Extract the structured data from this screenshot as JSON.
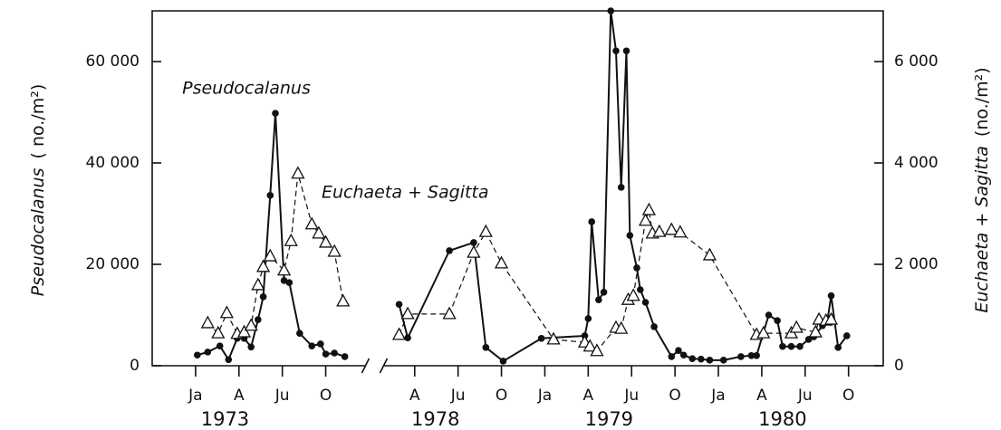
{
  "chart_data": {
    "type": "line",
    "ylabel": "Pseudocalanus",
    "yunit": "( no./m²)",
    "y2label": "Euchaeta + Sagitta",
    "y2unit": "(no./m²)",
    "xlim": [
      1972.75,
      1980.95
    ],
    "xbreak": [
      1974.0,
      1978.05
    ],
    "xticks": [
      {
        "value": 1973.0,
        "label": "Ja"
      },
      {
        "value": 1973.25,
        "label": "A"
      },
      {
        "value": 1973.5,
        "label": "Ju"
      },
      {
        "value": 1973.75,
        "label": "O"
      },
      {
        "value": 1978.25,
        "label": "A"
      },
      {
        "value": 1978.5,
        "label": "Ju"
      },
      {
        "value": 1978.75,
        "label": "O"
      },
      {
        "value": 1979.0,
        "label": "Ja"
      },
      {
        "value": 1979.25,
        "label": "A"
      },
      {
        "value": 1979.5,
        "label": "Ju"
      },
      {
        "value": 1979.75,
        "label": "O"
      },
      {
        "value": 1980.0,
        "label": "Ja"
      },
      {
        "value": 1980.25,
        "label": "A"
      },
      {
        "value": 1980.5,
        "label": "Ju"
      },
      {
        "value": 1980.75,
        "label": "O"
      }
    ],
    "years": [
      {
        "value": 1973.17,
        "label": "1973"
      },
      {
        "value": 1978.37,
        "label": "1978"
      },
      {
        "value": 1979.37,
        "label": "1979"
      },
      {
        "value": 1980.37,
        "label": "1980"
      }
    ],
    "ylim": [
      0,
      70000
    ],
    "yticks": [
      0,
      {
        "value": 20000,
        "label": "20 000"
      },
      {
        "value": 40000,
        "label": "40 000"
      },
      {
        "value": 60000,
        "label": "60 000"
      }
    ],
    "y2lim": [
      0,
      7000
    ],
    "y2ticks": [
      0,
      {
        "value": 2000,
        "label": "2 000"
      },
      {
        "value": 4000,
        "label": "4 000"
      },
      {
        "value": 6000,
        "label": "6 000"
      }
    ],
    "series": [
      {
        "name": "Pseudocalanus",
        "color": "#111111",
        "marker": "circle",
        "dashed": false,
        "axis": "y",
        "x": [
          1973.01,
          1973.07,
          1973.14,
          1973.19,
          1973.24,
          1973.28,
          1973.32,
          1973.36,
          1973.39,
          1973.43,
          1973.46,
          1973.51,
          1973.54,
          1973.6,
          1973.67,
          1973.72,
          1973.75,
          1973.8,
          1973.86,
          null,
          1978.16,
          1978.21,
          1978.45,
          1978.59,
          1978.66,
          1978.76,
          1978.98,
          1979.23,
          1979.25,
          1979.27,
          1979.31,
          1979.34,
          1979.38,
          1979.41,
          1979.44,
          1979.47,
          1979.49,
          1979.53,
          1979.55,
          1979.58,
          1979.63,
          1979.73,
          1979.77,
          1979.8,
          1979.85,
          1979.9,
          1979.95,
          1980.03,
          1980.13,
          1980.19,
          1980.22,
          1980.29,
          1980.34,
          1980.37,
          1980.42,
          1980.47,
          1980.52,
          1980.55,
          1980.6,
          1980.63,
          1980.65,
          1980.69,
          1980.74
        ],
        "values": [
          2100,
          2700,
          3900,
          1200,
          5400,
          5400,
          3700,
          9100,
          13600,
          33600,
          49800,
          16800,
          16400,
          6400,
          3900,
          4300,
          2300,
          2500,
          1800,
          null,
          12100,
          5500,
          22700,
          24300,
          3600,
          900,
          5400,
          5900,
          9300,
          28400,
          13000,
          14500,
          70000,
          62100,
          35200,
          62100,
          25700,
          19300,
          15000,
          12500,
          7700,
          1800,
          3000,
          2100,
          1400,
          1300,
          1100,
          1100,
          1800,
          2000,
          2000,
          10000,
          8900,
          3800,
          3800,
          3800,
          5200,
          5700,
          7900,
          9300,
          13800,
          3600,
          5900
        ]
      },
      {
        "name": "Euchaeta + Sagitta",
        "color": "#111111",
        "marker": "triangle",
        "dashed": true,
        "axis": "y2",
        "x": [
          1973.07,
          1973.13,
          1973.18,
          1973.24,
          1973.28,
          1973.32,
          1973.36,
          1973.39,
          1973.43,
          1973.51,
          1973.55,
          1973.59,
          1973.67,
          1973.71,
          1973.75,
          1973.8,
          1973.85,
          null,
          1978.16,
          1978.21,
          1978.45,
          1978.59,
          1978.66,
          1978.75,
          1979.05,
          1979.23,
          1979.26,
          1979.3,
          1979.41,
          1979.44,
          1979.48,
          1979.51,
          1979.58,
          1979.6,
          1979.62,
          1979.66,
          1979.73,
          1979.78,
          1979.95,
          1980.22,
          1980.26,
          1980.42,
          1980.45,
          1980.56,
          1980.58,
          1980.62,
          1980.65
        ],
        "values": [
          840,
          640,
          1040,
          630,
          660,
          790,
          1590,
          1950,
          2160,
          1880,
          2460,
          3790,
          2790,
          2610,
          2430,
          2250,
          1270,
          null,
          610,
          1020,
          1020,
          2230,
          2640,
          2020,
          520,
          460,
          380,
          290,
          750,
          730,
          1300,
          1380,
          2860,
          3070,
          2610,
          2640,
          2680,
          2630,
          2180,
          610,
          640,
          640,
          750,
          660,
          910,
          890,
          910
        ]
      }
    ]
  }
}
